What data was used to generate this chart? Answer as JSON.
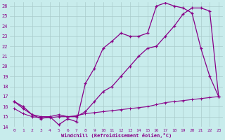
{
  "xlabel": "Windchill (Refroidissement éolien,°C)",
  "background_color": "#c8ecec",
  "line_color": "#880088",
  "grid_color": "#aacccc",
  "xlim": [
    -0.5,
    23.5
  ],
  "ylim": [
    14,
    26.4
  ],
  "yticks": [
    14,
    15,
    16,
    17,
    18,
    19,
    20,
    21,
    22,
    23,
    24,
    25,
    26
  ],
  "xticks": [
    0,
    1,
    2,
    3,
    4,
    5,
    6,
    7,
    8,
    9,
    10,
    11,
    12,
    13,
    14,
    15,
    16,
    17,
    18,
    19,
    20,
    21,
    22,
    23
  ],
  "line1_x": [
    0,
    1,
    2,
    3,
    4,
    5,
    6,
    7,
    8,
    9,
    10,
    11,
    12,
    13,
    14,
    15,
    16,
    17,
    18,
    19,
    20,
    21,
    22,
    23
  ],
  "line1_y": [
    16.5,
    16.0,
    15.2,
    14.8,
    15.0,
    14.2,
    14.8,
    14.5,
    18.3,
    19.8,
    21.8,
    22.5,
    23.3,
    23.0,
    23.0,
    23.3,
    26.0,
    26.3,
    26.0,
    25.8,
    25.3,
    21.8,
    19.0,
    17.0
  ],
  "line2_x": [
    0,
    1,
    2,
    3,
    4,
    5,
    6,
    7,
    8,
    9,
    10,
    11,
    12,
    13,
    14,
    15,
    16,
    17,
    18,
    19,
    20,
    21,
    22,
    23
  ],
  "line2_y": [
    16.5,
    15.8,
    15.2,
    15.0,
    15.0,
    15.2,
    15.0,
    15.0,
    15.5,
    16.5,
    17.5,
    18.0,
    19.0,
    20.0,
    21.0,
    21.8,
    22.0,
    23.0,
    24.0,
    25.2,
    25.8,
    25.8,
    25.5,
    17.0
  ],
  "line3_x": [
    0,
    1,
    2,
    3,
    4,
    5,
    6,
    7,
    8,
    9,
    10,
    11,
    12,
    13,
    14,
    15,
    16,
    17,
    18,
    19,
    20,
    21,
    22,
    23
  ],
  "line3_y": [
    15.8,
    15.3,
    15.0,
    14.9,
    14.9,
    15.0,
    15.0,
    15.1,
    15.3,
    15.4,
    15.5,
    15.6,
    15.7,
    15.8,
    15.9,
    16.0,
    16.2,
    16.4,
    16.5,
    16.6,
    16.7,
    16.8,
    16.9,
    17.0
  ]
}
